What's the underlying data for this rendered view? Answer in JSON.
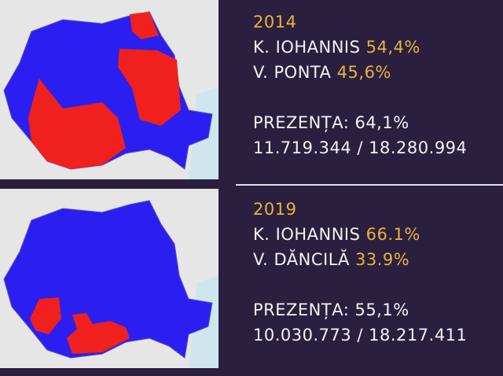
{
  "panels": [
    {
      "year": "2014",
      "candidates": [
        {
          "name": "K. IOHANNIS",
          "percent": "54,4%"
        },
        {
          "name": "V. PONTA",
          "percent": "45,6%"
        }
      ],
      "turnout": "PREZENȚA: 64,1%",
      "votes": "11.719.344 / 18.280.994"
    },
    {
      "year": "2019",
      "candidates": [
        {
          "name": "K. IOHANNIS",
          "percent": "66.1%"
        },
        {
          "name": "V. DĂNCILĂ",
          "percent": "33.9%"
        }
      ],
      "turnout": "PREZENȚA: 55,1%",
      "votes": "10.030.773 / 18.217.411"
    }
  ]
}
